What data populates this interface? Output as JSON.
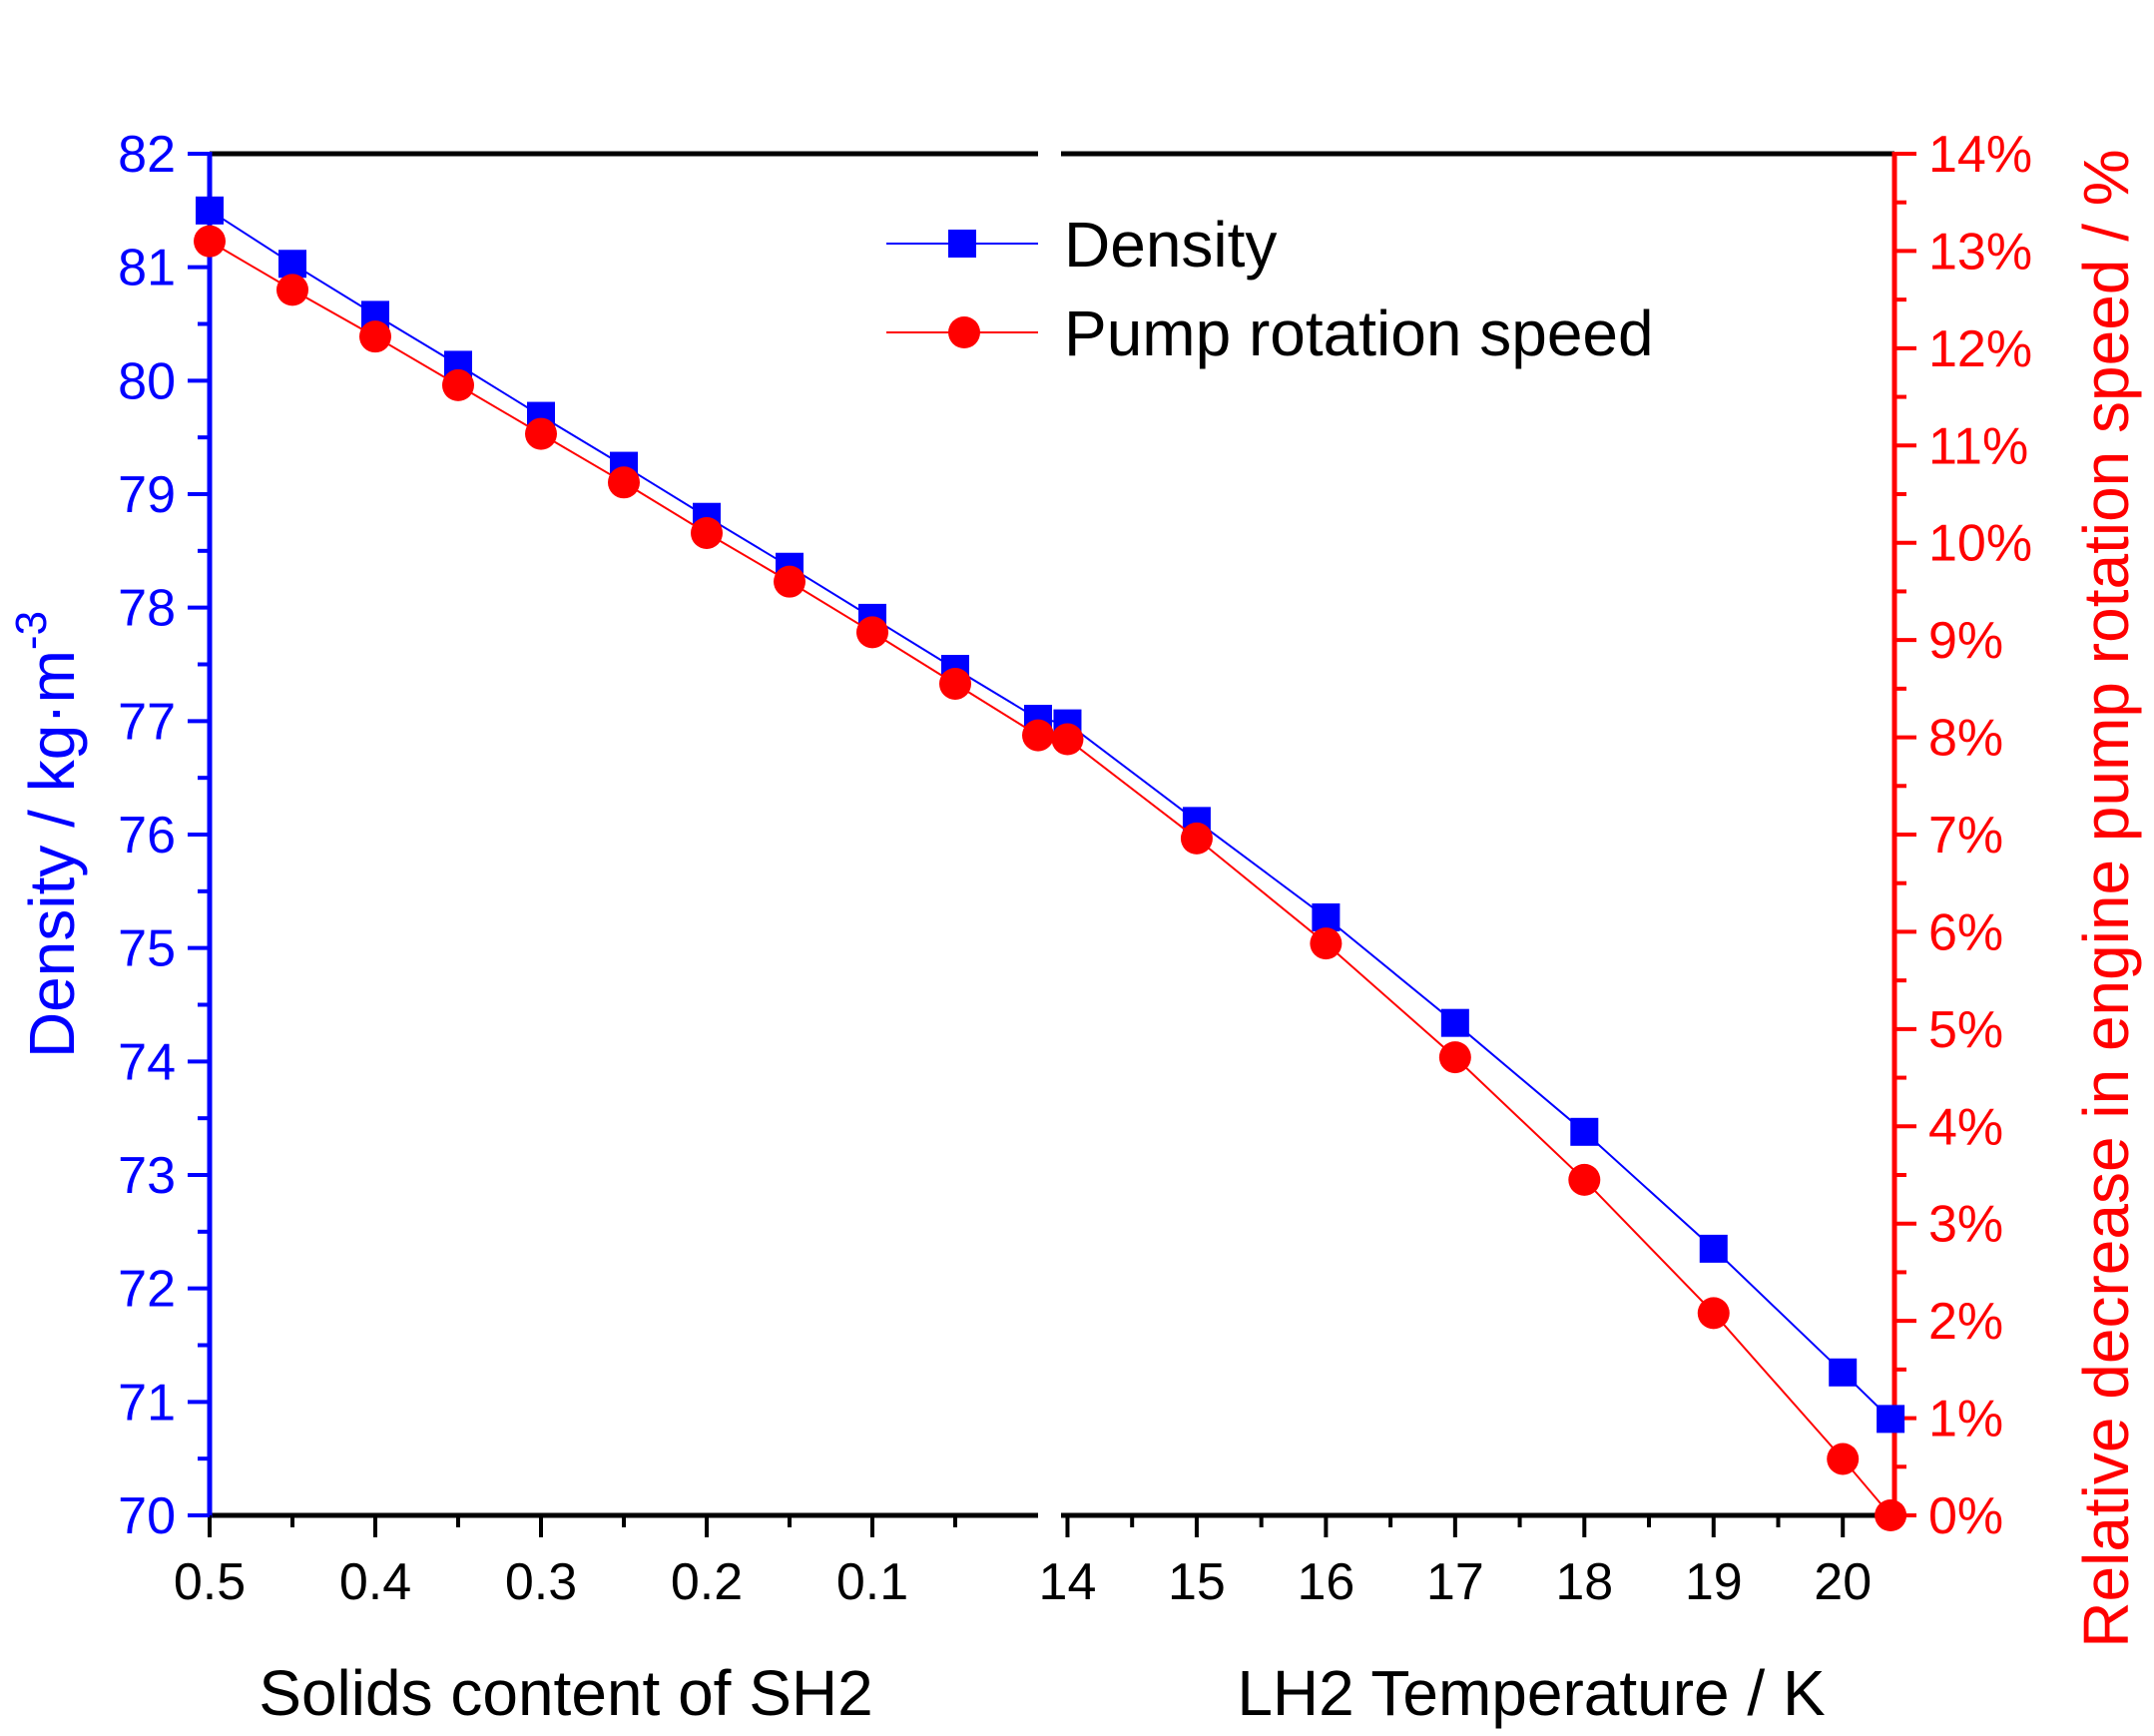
{
  "chart_data": {
    "type": "line",
    "x_axis_segments": [
      {
        "label": "Solids content of SH2",
        "range": [
          0.5,
          0.0
        ],
        "ticks": [
          "0.5",
          "0.4",
          "0.3",
          "0.2",
          "0.1"
        ],
        "tick_values": [
          0.5,
          0.4,
          0.3,
          0.2,
          0.1
        ]
      },
      {
        "label": "LH2 Temperature / K",
        "range": [
          13.95,
          20.4
        ],
        "ticks": [
          "14",
          "15",
          "16",
          "17",
          "18",
          "19",
          "20"
        ],
        "tick_values": [
          14,
          15,
          16,
          17,
          18,
          19,
          20
        ]
      }
    ],
    "y_left": {
      "label": "Density / kg·m",
      "label_sup": "-3",
      "range": [
        70,
        82
      ],
      "ticks": [
        "70",
        "71",
        "72",
        "73",
        "74",
        "75",
        "76",
        "77",
        "78",
        "79",
        "80",
        "81",
        "82"
      ],
      "tick_values": [
        70,
        71,
        72,
        73,
        74,
        75,
        76,
        77,
        78,
        79,
        80,
        81,
        82
      ],
      "color": "#0000ff"
    },
    "y_right": {
      "label": "Relative decrease in engine pump rotation speed / %",
      "range": [
        0,
        14
      ],
      "ticks": [
        "0%",
        "1%",
        "2%",
        "3%",
        "4%",
        "5%",
        "6%",
        "7%",
        "8%",
        "9%",
        "10%",
        "11%",
        "12%",
        "13%",
        "14%"
      ],
      "tick_values": [
        0,
        1,
        2,
        3,
        4,
        5,
        6,
        7,
        8,
        9,
        10,
        11,
        12,
        13,
        14
      ],
      "color": "#ff0000"
    },
    "series": [
      {
        "name": "Density",
        "axis": "left",
        "color": "#0000ff",
        "marker": "square",
        "segment1": {
          "x": [
            0.5,
            0.45,
            0.4,
            0.35,
            0.3,
            0.25,
            0.2,
            0.15,
            0.1,
            0.05,
            0.0
          ],
          "y": [
            81.5,
            81.03,
            80.58,
            80.14,
            79.69,
            79.25,
            78.8,
            78.36,
            77.91,
            77.46,
            77.02
          ]
        },
        "segment2": {
          "x": [
            14,
            15,
            16,
            17,
            18,
            19,
            20,
            20.37
          ],
          "y": [
            76.98,
            76.12,
            75.27,
            74.34,
            73.38,
            72.35,
            71.26,
            70.85
          ]
        }
      },
      {
        "name": "Pump rotation speed",
        "axis": "right",
        "color": "#ff0000",
        "marker": "circle",
        "segment1": {
          "x": [
            0.5,
            0.45,
            0.4,
            0.35,
            0.3,
            0.25,
            0.2,
            0.15,
            0.1,
            0.05,
            0.0
          ],
          "y": [
            13.1,
            12.6,
            12.12,
            11.62,
            11.12,
            10.62,
            10.1,
            9.6,
            9.08,
            8.55,
            8.02
          ]
        },
        "segment2": {
          "x": [
            14,
            15,
            16,
            17,
            18,
            19,
            20,
            20.37
          ],
          "y": [
            7.98,
            6.96,
            5.88,
            4.71,
            3.45,
            2.08,
            0.58,
            0
          ]
        }
      }
    ],
    "legend": {
      "position": "top-center",
      "entries": [
        "Density",
        "Pump rotation speed"
      ]
    }
  }
}
